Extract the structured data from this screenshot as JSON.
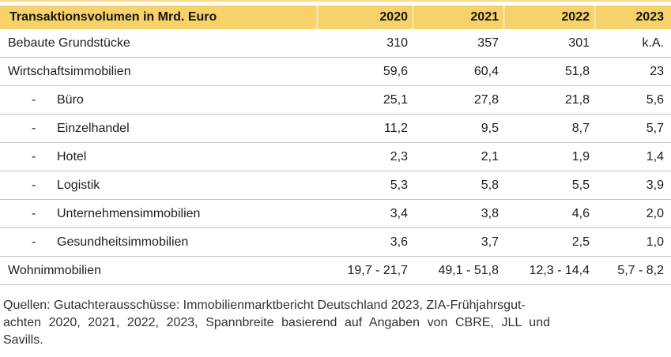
{
  "colors": {
    "header_bg": "#f7d169",
    "header_separator": "#fae29b",
    "top_accent_line": "#f9dc84",
    "row_divider": "#c2c2c2",
    "text": "#1e1d1b"
  },
  "table": {
    "header": {
      "title": "Transaktionsvolumen in Mrd. Euro",
      "years": [
        "2020",
        "2021",
        "2022",
        "2023"
      ]
    },
    "rows": [
      {
        "label": "Bebaute Grundstücke",
        "indent": false,
        "values": [
          "310",
          "357",
          "301",
          "k.A."
        ]
      },
      {
        "label": "Wirtschaftsimmobilien",
        "indent": false,
        "values": [
          "59,6",
          "60,4",
          "51,8",
          "23"
        ]
      },
      {
        "label": "Büro",
        "indent": true,
        "bullet": "-",
        "values": [
          "25,1",
          "27,8",
          "21,8",
          "5,6"
        ]
      },
      {
        "label": "Einzelhandel",
        "indent": true,
        "bullet": "-",
        "values": [
          "11,2",
          "9,5",
          "8,7",
          "5,7"
        ]
      },
      {
        "label": "Hotel",
        "indent": true,
        "bullet": "-",
        "values": [
          "2,3",
          "2,1",
          "1,9",
          "1,4"
        ]
      },
      {
        "label": "Logistik",
        "indent": true,
        "bullet": "-",
        "values": [
          "5,3",
          "5,8",
          "5,5",
          "3,9"
        ]
      },
      {
        "label": "Unternehmensimmobilien",
        "indent": true,
        "bullet": "-",
        "values": [
          "3,4",
          "3,8",
          "4,6",
          "2,0"
        ]
      },
      {
        "label": "Gesundheitsimmobilien",
        "indent": true,
        "bullet": "-",
        "values": [
          "3,6",
          "3,7",
          "2,5",
          "1,0"
        ]
      },
      {
        "label": "Wohnimmobilien",
        "indent": false,
        "values": [
          "19,7 - 21,7",
          "49,1 - 51,8",
          "12,3 - 14,4",
          "5,7 - 8,2"
        ]
      }
    ]
  },
  "footer": {
    "lines": [
      "Quellen: Gutachterausschüsse: Immobilienmarktbericht Deutschland 2023, ZIA-Frühjahrsgut-",
      "achten 2020, 2021, 2022, 2023, Spannbreite basierend auf Angaben von CBRE, JLL und",
      "Savills."
    ]
  }
}
